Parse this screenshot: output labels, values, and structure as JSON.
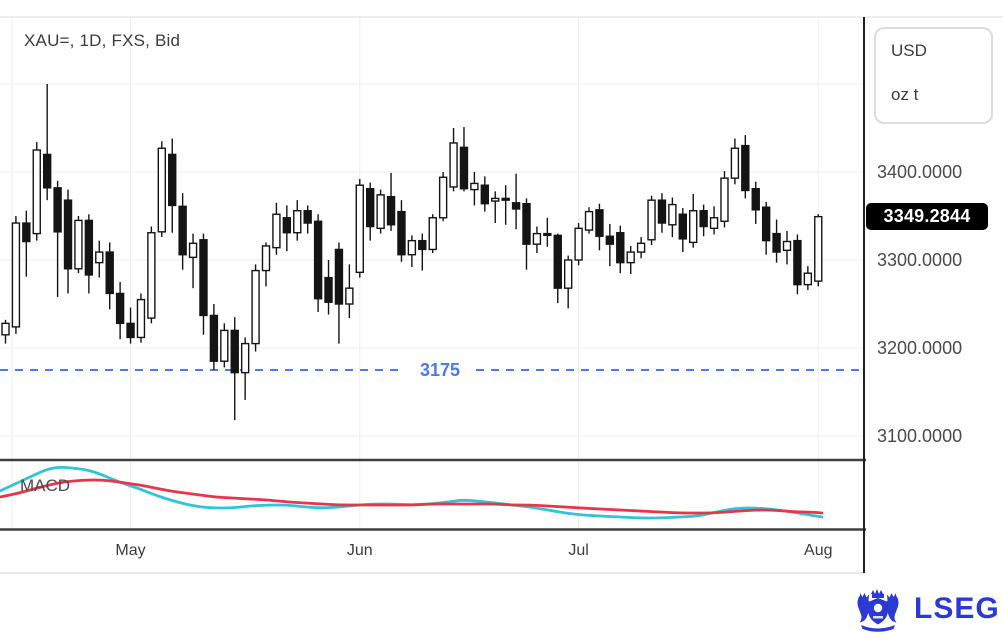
{
  "window": {
    "background": "#ffffff"
  },
  "chart": {
    "title": "XAU=, 1D, FXS, Bid",
    "unit_box": {
      "currency": "USD",
      "unit": "oz t"
    },
    "indicator_label": "MACD",
    "support_line": {
      "label": "3175",
      "price": 3175,
      "color": "#4e7ae9",
      "style": "dashed"
    },
    "price_axis_labels": [
      {
        "label": "3400.0000",
        "price": 3400,
        "is_last_price": false
      },
      {
        "label": "3349.2844",
        "price": 3349.2844,
        "is_last_price": true
      },
      {
        "label": "3300.0000",
        "price": 3300,
        "is_last_price": false
      },
      {
        "label": "3200.0000",
        "price": 3200,
        "is_last_price": false
      },
      {
        "label": "3100.0000",
        "price": 3100,
        "is_last_price": false
      }
    ]
  },
  "chart_data": {
    "type": "candlestick",
    "title": "XAU=, 1D, FXS, Bid",
    "instrument": "XAU=",
    "interval": "1D",
    "source": "FXS",
    "field": "Bid",
    "last_price": 3349.2844,
    "y_axis": {
      "unit": "USD / oz t",
      "tick_interval": 100,
      "gridline_prices": [
        3500,
        3400,
        3300,
        3200,
        3100
      ],
      "visible_range": [
        3080,
        3560
      ]
    },
    "x_axis": {
      "month_starts": [
        {
          "label": "May",
          "index": 12
        },
        {
          "label": "Jun",
          "index": 34
        },
        {
          "label": "Jul",
          "index": 55
        },
        {
          "label": "Aug",
          "index": 78
        }
      ]
    },
    "support_level": 3175,
    "candles_ohlc": [
      [
        3215,
        3232,
        3205,
        3228
      ],
      [
        3224,
        3350,
        3216,
        3342
      ],
      [
        3342,
        3356,
        3281,
        3321
      ],
      [
        3330,
        3434,
        3322,
        3425
      ],
      [
        3420,
        3500,
        3368,
        3382
      ],
      [
        3382,
        3390,
        3258,
        3332
      ],
      [
        3368,
        3380,
        3262,
        3290
      ],
      [
        3290,
        3350,
        3285,
        3345
      ],
      [
        3345,
        3352,
        3262,
        3283
      ],
      [
        3297,
        3322,
        3280,
        3309
      ],
      [
        3309,
        3320,
        3244,
        3262
      ],
      [
        3262,
        3275,
        3210,
        3228
      ],
      [
        3228,
        3246,
        3205,
        3212
      ],
      [
        3212,
        3262,
        3206,
        3255
      ],
      [
        3234,
        3338,
        3228,
        3331
      ],
      [
        3332,
        3435,
        3326,
        3427
      ],
      [
        3420,
        3438,
        3331,
        3362
      ],
      [
        3361,
        3376,
        3289,
        3306
      ],
      [
        3303,
        3330,
        3268,
        3319
      ],
      [
        3323,
        3330,
        3215,
        3237
      ],
      [
        3237,
        3250,
        3175,
        3185
      ],
      [
        3185,
        3228,
        3178,
        3220
      ],
      [
        3220,
        3235,
        3118,
        3172
      ],
      [
        3172,
        3212,
        3141,
        3205
      ],
      [
        3205,
        3295,
        3196,
        3288
      ],
      [
        3288,
        3320,
        3270,
        3316
      ],
      [
        3314,
        3365,
        3306,
        3352
      ],
      [
        3348,
        3362,
        3310,
        3331
      ],
      [
        3331,
        3368,
        3322,
        3356
      ],
      [
        3356,
        3362,
        3330,
        3342
      ],
      [
        3344,
        3352,
        3241,
        3256
      ],
      [
        3280,
        3300,
        3238,
        3252
      ],
      [
        3312,
        3320,
        3205,
        3250
      ],
      [
        3250,
        3295,
        3234,
        3268
      ],
      [
        3286,
        3392,
        3280,
        3385
      ],
      [
        3381,
        3388,
        3322,
        3338
      ],
      [
        3336,
        3380,
        3330,
        3374
      ],
      [
        3372,
        3399,
        3333,
        3340
      ],
      [
        3355,
        3368,
        3298,
        3306
      ],
      [
        3306,
        3328,
        3292,
        3322
      ],
      [
        3322,
        3330,
        3288,
        3312
      ],
      [
        3312,
        3352,
        3308,
        3348
      ],
      [
        3348,
        3400,
        3344,
        3394
      ],
      [
        3383,
        3450,
        3378,
        3433
      ],
      [
        3428,
        3451,
        3378,
        3381
      ],
      [
        3380,
        3400,
        3362,
        3387
      ],
      [
        3385,
        3395,
        3355,
        3364
      ],
      [
        3367,
        3378,
        3342,
        3370
      ],
      [
        3370,
        3385,
        3340,
        3368
      ],
      [
        3365,
        3398,
        3335,
        3358
      ],
      [
        3364,
        3370,
        3289,
        3318
      ],
      [
        3318,
        3338,
        3308,
        3330
      ],
      [
        3330,
        3348,
        3315,
        3328
      ],
      [
        3328,
        3330,
        3251,
        3268
      ],
      [
        3268,
        3305,
        3245,
        3300
      ],
      [
        3300,
        3342,
        3294,
        3336
      ],
      [
        3334,
        3360,
        3330,
        3355
      ],
      [
        3357,
        3364,
        3311,
        3327
      ],
      [
        3327,
        3341,
        3293,
        3318
      ],
      [
        3331,
        3339,
        3285,
        3297
      ],
      [
        3297,
        3316,
        3284,
        3309
      ],
      [
        3309,
        3326,
        3302,
        3319
      ],
      [
        3323,
        3373,
        3317,
        3368
      ],
      [
        3368,
        3376,
        3331,
        3342
      ],
      [
        3340,
        3371,
        3326,
        3363
      ],
      [
        3352,
        3359,
        3309,
        3324
      ],
      [
        3320,
        3375,
        3314,
        3356
      ],
      [
        3356,
        3363,
        3327,
        3338
      ],
      [
        3336,
        3361,
        3329,
        3348
      ],
      [
        3344,
        3401,
        3337,
        3393
      ],
      [
        3393,
        3438,
        3386,
        3427
      ],
      [
        3430,
        3442,
        3370,
        3379
      ],
      [
        3381,
        3389,
        3341,
        3357
      ],
      [
        3360,
        3366,
        3306,
        3322
      ],
      [
        3330,
        3346,
        3297,
        3309
      ],
      [
        3311,
        3333,
        3295,
        3321
      ],
      [
        3322,
        3329,
        3261,
        3272
      ],
      [
        3272,
        3293,
        3266,
        3285
      ],
      [
        3276,
        3352,
        3270,
        3349.2844
      ]
    ],
    "macd": {
      "note": "unlabeled indicator panel; points digitized in plot pixel space [x,y]",
      "line_color": "#31c3d8",
      "signal_color": "#e9344a",
      "line": [
        [
          0,
          491
        ],
        [
          15,
          484
        ],
        [
          30,
          477
        ],
        [
          45,
          470
        ],
        [
          58,
          467
        ],
        [
          72,
          468
        ],
        [
          88,
          470
        ],
        [
          100,
          474
        ],
        [
          112,
          479
        ],
        [
          125,
          484
        ],
        [
          140,
          489
        ],
        [
          155,
          495
        ],
        [
          170,
          500
        ],
        [
          185,
          504
        ],
        [
          200,
          507
        ],
        [
          215,
          508
        ],
        [
          232,
          508
        ],
        [
          250,
          506
        ],
        [
          268,
          505
        ],
        [
          288,
          505
        ],
        [
          305,
          507
        ],
        [
          322,
          508
        ],
        [
          340,
          507
        ],
        [
          358,
          505
        ],
        [
          375,
          504
        ],
        [
          395,
          504
        ],
        [
          412,
          505
        ],
        [
          430,
          504
        ],
        [
          448,
          502
        ],
        [
          462,
          500
        ],
        [
          478,
          501
        ],
        [
          495,
          503
        ],
        [
          512,
          505
        ],
        [
          530,
          507
        ],
        [
          548,
          510
        ],
        [
          565,
          513
        ],
        [
          582,
          515
        ],
        [
          600,
          516
        ],
        [
          620,
          517
        ],
        [
          640,
          518
        ],
        [
          660,
          518
        ],
        [
          680,
          517
        ],
        [
          698,
          516
        ],
        [
          712,
          513
        ],
        [
          726,
          510
        ],
        [
          740,
          508
        ],
        [
          755,
          508
        ],
        [
          770,
          509
        ],
        [
          785,
          511
        ],
        [
          798,
          513
        ],
        [
          810,
          515
        ],
        [
          822,
          517
        ]
      ],
      "signal": [
        [
          0,
          497
        ],
        [
          15,
          494
        ],
        [
          30,
          490
        ],
        [
          45,
          486
        ],
        [
          58,
          483
        ],
        [
          72,
          481
        ],
        [
          88,
          480
        ],
        [
          100,
          480
        ],
        [
          112,
          481
        ],
        [
          125,
          483
        ],
        [
          140,
          485
        ],
        [
          155,
          488
        ],
        [
          170,
          491
        ],
        [
          185,
          493
        ],
        [
          200,
          495
        ],
        [
          215,
          497
        ],
        [
          232,
          498
        ],
        [
          250,
          499
        ],
        [
          268,
          500
        ],
        [
          288,
          502
        ],
        [
          305,
          503
        ],
        [
          322,
          504
        ],
        [
          340,
          505
        ],
        [
          358,
          505
        ],
        [
          375,
          505
        ],
        [
          395,
          505
        ],
        [
          412,
          505
        ],
        [
          430,
          504
        ],
        [
          448,
          504
        ],
        [
          462,
          504
        ],
        [
          478,
          504
        ],
        [
          495,
          504
        ],
        [
          512,
          505
        ],
        [
          530,
          505
        ],
        [
          548,
          506
        ],
        [
          565,
          507
        ],
        [
          582,
          508
        ],
        [
          600,
          509
        ],
        [
          620,
          510
        ],
        [
          640,
          511
        ],
        [
          660,
          512
        ],
        [
          680,
          513
        ],
        [
          698,
          513
        ],
        [
          712,
          513
        ],
        [
          726,
          512
        ],
        [
          740,
          511
        ],
        [
          755,
          510
        ],
        [
          770,
          510
        ],
        [
          785,
          511
        ],
        [
          798,
          512
        ],
        [
          810,
          512
        ],
        [
          822,
          513
        ]
      ]
    }
  },
  "footer": {
    "logo_text": "LSEG",
    "logo_color": "#2a3ad2"
  },
  "colors": {
    "grid": "#ededed",
    "frame_light": "#e3e3e3",
    "divider_dark": "#3f3f3f",
    "axis_line": "#1f1f1f",
    "candle": "#141414",
    "candle_up_fill": "#ffffff",
    "support_blue": "#4e7ae9",
    "badge_bg": "#000000",
    "badge_text": "#ffffff",
    "label_text": "#3c3c3c"
  }
}
